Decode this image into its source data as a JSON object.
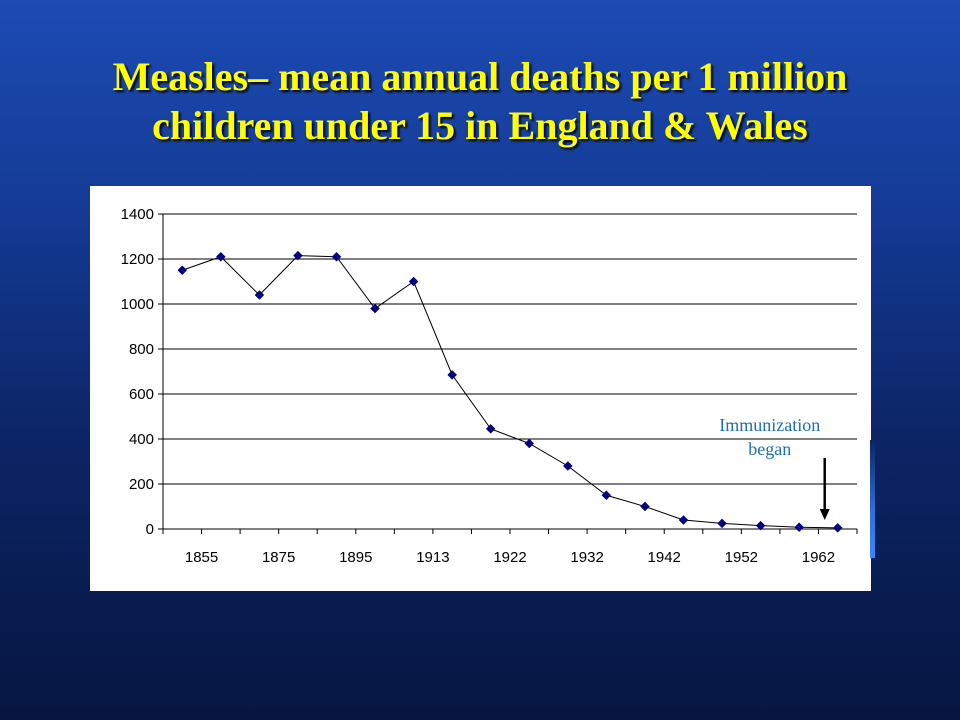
{
  "title": {
    "line1": "Measles– mean annual deaths per 1 million",
    "line2": "children under 15 in England & Wales"
  },
  "colors": {
    "title": "#ffff00",
    "marker": "#000080",
    "line": "#000000",
    "annotation": "#1f6eb0",
    "gridline": "#000000",
    "panel": "#ffffff"
  },
  "chart_data": {
    "type": "line",
    "title": "",
    "xlabel": "",
    "ylabel": "",
    "ylim": [
      0,
      1400
    ],
    "yticks": [
      0,
      200,
      400,
      600,
      800,
      1000,
      1200,
      1400
    ],
    "grid": "horizontal",
    "legend": "none",
    "marker": "diamond",
    "x_tick_labels": [
      "1855",
      "1875",
      "1895",
      "1913",
      "1922",
      "1932",
      "1942",
      "1952",
      "1962"
    ],
    "series": [
      {
        "values": [
          1150,
          1210,
          1040,
          1215,
          1210,
          980,
          1100,
          685,
          445,
          380,
          280,
          150,
          100,
          40,
          25,
          15,
          8,
          5
        ]
      }
    ],
    "annotation": {
      "lines": [
        "Immunization",
        "began"
      ],
      "point_index": 17,
      "arrow": "down"
    }
  }
}
